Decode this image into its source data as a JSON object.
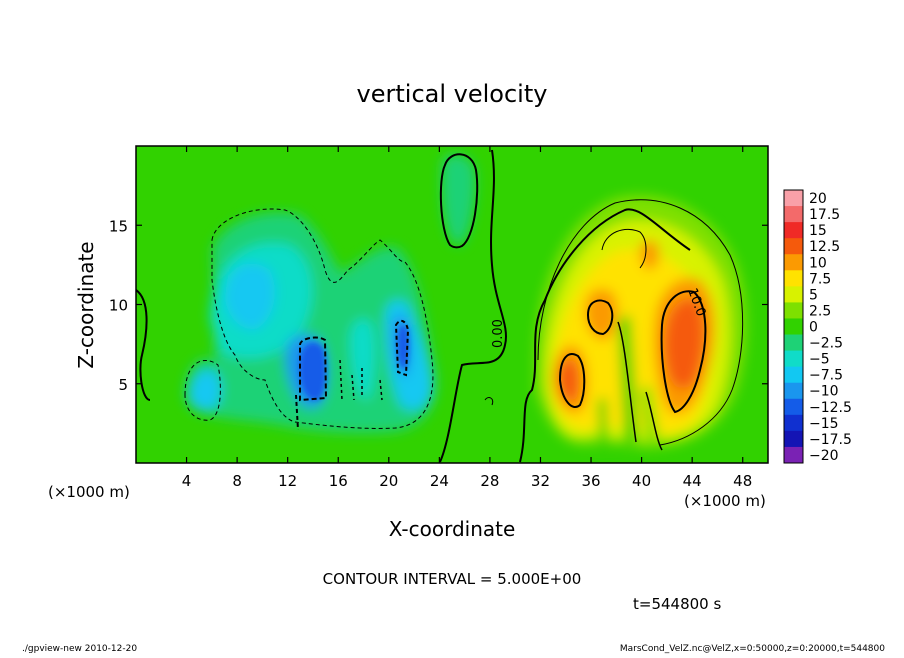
{
  "chart_data": {
    "type": "heatmap",
    "title": "vertical velocity",
    "xlabel": "X-coordinate",
    "ylabel": "Z-coordinate",
    "x_unit_left": "(×1000 m)",
    "x_unit_right": "(×1000 m)",
    "xlim": [
      0,
      50
    ],
    "ylim": [
      0,
      20
    ],
    "x_ticks": [
      4,
      8,
      12,
      16,
      20,
      24,
      28,
      32,
      36,
      40,
      44,
      48
    ],
    "y_ticks": [
      5,
      10,
      15
    ],
    "colorbar": {
      "labels": [
        "20",
        "17.5",
        "15",
        "12.5",
        "10",
        "7.5",
        "5",
        "2.5",
        "0",
        "-2.5",
        "-5",
        "-7.5",
        "-10",
        "-12.5",
        "-15",
        "-17.5",
        "-20"
      ],
      "colors": [
        "#f9a0a8",
        "#f36a6a",
        "#f02a26",
        "#f55a0c",
        "#fb9a02",
        "#ffe200",
        "#d8f200",
        "#7ee000",
        "#31d200",
        "#1ed276",
        "#10dcc8",
        "#12c8f2",
        "#1a96ee",
        "#145ce8",
        "#1030d0",
        "#1414b4",
        "#7a22b4"
      ]
    },
    "contour_labels": [
      "0.00",
      "10.0"
    ],
    "contour_interval_text": "CONTOUR INTERVAL = 5.000E+00",
    "time_text": "t=544800 s"
  },
  "footer": {
    "left": "./gpview-new   2010-12-20",
    "right": "MarsCond_VelZ.nc@VelZ,x=0:50000,z=0:20000,t=544800"
  }
}
